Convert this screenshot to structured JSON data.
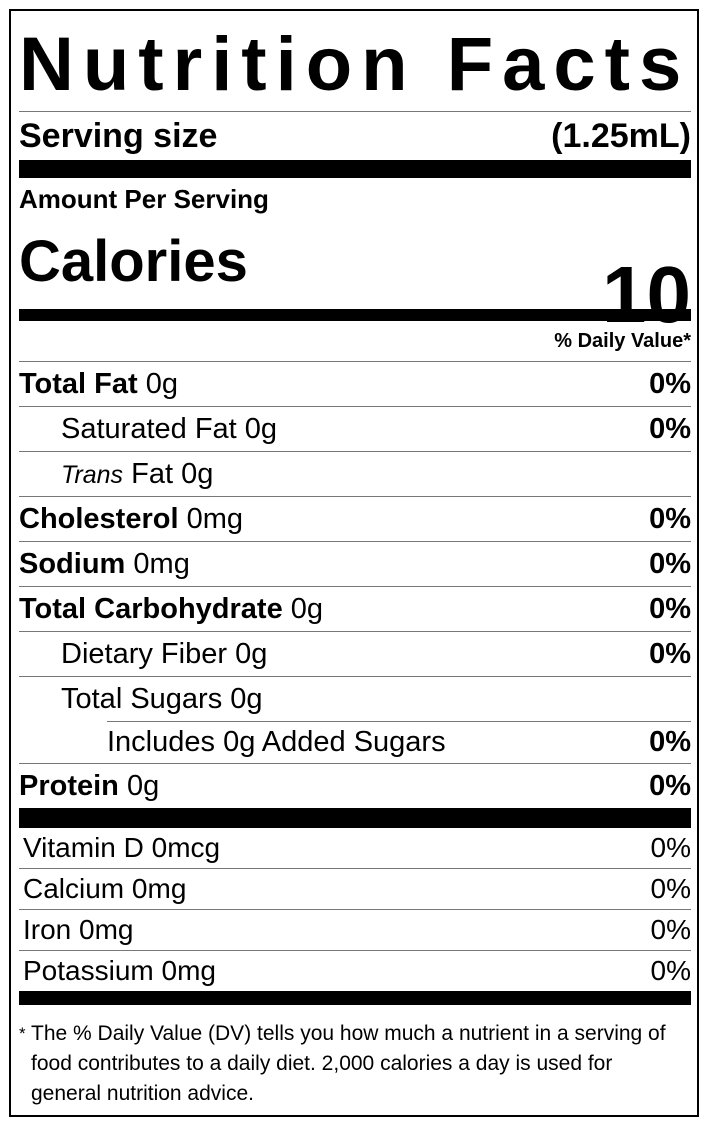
{
  "title": "Nutrition Facts",
  "serving": {
    "label": "Serving size",
    "value": "(1.25mL)"
  },
  "amount_per_serving": "Amount Per Serving",
  "calories": {
    "label": "Calories",
    "value": 10
  },
  "daily_value_header": "% Daily Value*",
  "nutrients": [
    {
      "name": "Total Fat",
      "amount": "0g",
      "dv": "0%"
    },
    {
      "name": "Saturated Fat",
      "amount": "0g",
      "dv": "0%"
    },
    {
      "prefix": "Trans",
      "name": "Fat",
      "amount": "0g"
    },
    {
      "name": "Cholesterol",
      "amount": "0mg",
      "dv": "0%"
    },
    {
      "name": "Sodium",
      "amount": "0mg",
      "dv": "0%"
    },
    {
      "name": "Total Carbohydrate",
      "amount": "0g",
      "dv": "0%"
    },
    {
      "name": "Dietary Fiber",
      "amount": "0g",
      "dv": "0%"
    },
    {
      "name": "Total Sugars",
      "amount": "0g"
    },
    {
      "name": "Includes 0g Added Sugars",
      "dv": "0%"
    },
    {
      "name": "Protein",
      "amount": "0g",
      "dv": "0%"
    }
  ],
  "vitamins": [
    {
      "name": "Vitamin D",
      "amount": "0mcg",
      "dv": "0%"
    },
    {
      "name": "Calcium",
      "amount": "0mg",
      "dv": "0%"
    },
    {
      "name": "Iron",
      "amount": "0mg",
      "dv": "0%"
    },
    {
      "name": "Potassium",
      "amount": "0mg",
      "dv": "0%"
    }
  ],
  "footnote": {
    "mark": "*",
    "text": "The % Daily Value (DV) tells you how much a nutrient in a serving of food contributes to a daily diet. 2,000 calories a day is used for general nutrition advice."
  }
}
